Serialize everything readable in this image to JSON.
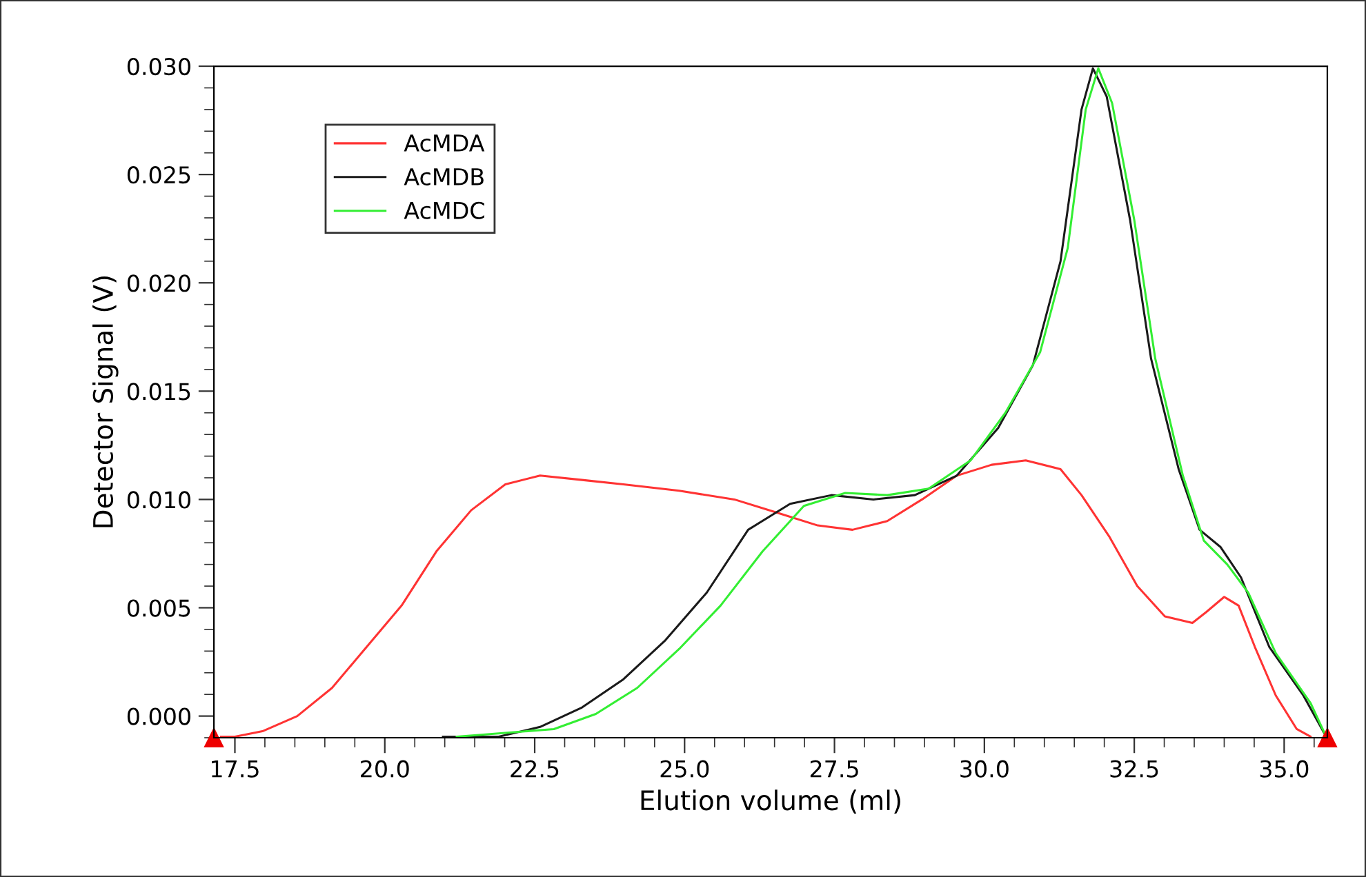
{
  "chart_data": {
    "type": "line",
    "xlabel": "Elution volume (ml)",
    "ylabel": "Detector Signal (V)",
    "xlim": [
      17.15,
      35.72
    ],
    "ylim": [
      -0.001,
      0.03
    ],
    "xticks": [
      {
        "value": 17.5,
        "label": "17.5"
      },
      {
        "value": 20.0,
        "label": "20.0"
      },
      {
        "value": 22.5,
        "label": "22.5"
      },
      {
        "value": 25.0,
        "label": "25.0"
      },
      {
        "value": 27.5,
        "label": "27.5"
      },
      {
        "value": 30.0,
        "label": "30.0"
      },
      {
        "value": 32.5,
        "label": "32.5"
      },
      {
        "value": 35.0,
        "label": "35.0"
      }
    ],
    "yticks": [
      {
        "value": 0.0,
        "label": "0.000"
      },
      {
        "value": 0.005,
        "label": "0.005"
      },
      {
        "value": 0.01,
        "label": "0.010"
      },
      {
        "value": 0.015,
        "label": "0.015"
      },
      {
        "value": 0.02,
        "label": "0.020"
      },
      {
        "value": 0.025,
        "label": "0.025"
      },
      {
        "value": 0.03,
        "label": "0.030"
      }
    ],
    "grid": false,
    "legend": "top left",
    "marker": "none",
    "line_style": "solid",
    "series": [
      {
        "name": "AcMDA",
        "color": "#ff3333",
        "x": [
          17.27,
          17.5,
          17.96,
          18.54,
          19.12,
          19.7,
          20.28,
          20.86,
          21.44,
          22.01,
          22.59,
          23.29,
          23.98,
          24.91,
          25.83,
          26.53,
          27.22,
          27.8,
          28.38,
          28.96,
          29.54,
          30.12,
          30.69,
          31.27,
          31.62,
          32.08,
          32.55,
          33.01,
          33.47,
          33.7,
          34.0,
          34.24,
          34.51,
          34.86,
          35.21,
          35.44
        ],
        "values": [
          -0.00095,
          -0.00095,
          -0.0007,
          0.0,
          0.0013,
          0.0032,
          0.0051,
          0.0076,
          0.0095,
          0.0107,
          0.0111,
          0.0109,
          0.0107,
          0.0104,
          0.01,
          0.0094,
          0.0088,
          0.0086,
          0.009,
          0.01,
          0.0111,
          0.0116,
          0.0118,
          0.0114,
          0.0102,
          0.0083,
          0.006,
          0.0046,
          0.0043,
          0.0048,
          0.0055,
          0.0051,
          0.0032,
          0.00095,
          -0.0006,
          -0.00095
        ]
      },
      {
        "name": "AcMDB",
        "color": "#1a1a1a",
        "x": [
          20.97,
          21.9,
          22.59,
          23.29,
          23.98,
          24.68,
          25.37,
          26.06,
          26.76,
          27.45,
          28.15,
          28.84,
          29.54,
          30.23,
          30.81,
          31.27,
          31.62,
          31.81,
          32.04,
          32.43,
          32.78,
          33.24,
          33.59,
          33.94,
          34.28,
          34.75,
          35.32,
          35.7
        ],
        "values": [
          -0.00095,
          -0.00095,
          -0.0005,
          0.0004,
          0.0017,
          0.0035,
          0.0057,
          0.0086,
          0.0098,
          0.0102,
          0.01,
          0.0102,
          0.0111,
          0.0133,
          0.0162,
          0.021,
          0.028,
          0.0299,
          0.0286,
          0.0229,
          0.0165,
          0.0114,
          0.0086,
          0.0078,
          0.0064,
          0.0032,
          0.00095,
          -0.00095
        ]
      },
      {
        "name": "AcMDC",
        "color": "#33ee33",
        "x": [
          21.2,
          22.82,
          23.52,
          24.21,
          24.91,
          25.6,
          26.3,
          26.99,
          27.68,
          28.38,
          29.07,
          29.77,
          30.35,
          30.93,
          31.39,
          31.69,
          31.9,
          32.13,
          32.5,
          32.85,
          33.31,
          33.66,
          34.05,
          34.4,
          34.86,
          35.44,
          35.7
        ],
        "values": [
          -0.00095,
          -0.0006,
          0.0001,
          0.0013,
          0.0031,
          0.0051,
          0.0076,
          0.0097,
          0.0103,
          0.0102,
          0.0105,
          0.0118,
          0.014,
          0.0168,
          0.0216,
          0.028,
          0.0299,
          0.0283,
          0.0229,
          0.0165,
          0.0111,
          0.0081,
          0.007,
          0.0057,
          0.0029,
          0.0006,
          -0.00095
        ]
      }
    ]
  }
}
